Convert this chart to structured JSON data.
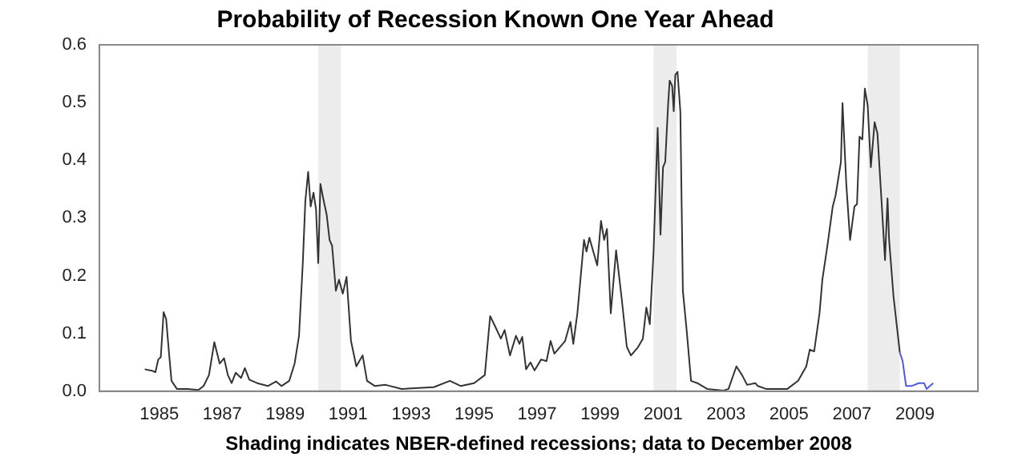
{
  "chart_data": {
    "type": "line",
    "title": "Probability of Recession Known One Year Ahead",
    "xlabel": "Shading indicates NBER-defined recessions; data to December 2008",
    "xlim": [
      1983.1,
      2011.0
    ],
    "xticks": [
      1985,
      1987,
      1989,
      1991,
      1993,
      1995,
      1997,
      1999,
      2001,
      2003,
      2005,
      2007,
      2009
    ],
    "ylim": [
      0,
      0.6
    ],
    "yticks": [
      {
        "value": 0,
        "label": "0.0"
      },
      0.1,
      0.2,
      0.3,
      0.4,
      0.5,
      0.6
    ],
    "grid": false,
    "bands": [
      {
        "axis": "x",
        "from": 1990.05,
        "to": 1990.77,
        "color": "#ececec"
      },
      {
        "axis": "x",
        "from": 2000.7,
        "to": 2001.43,
        "color": "#ececec"
      },
      {
        "axis": "x",
        "from": 2007.5,
        "to": 2008.52,
        "color": "#ececec"
      }
    ],
    "series": [
      {
        "color": "#333333",
        "x": [
          1984.54,
          1984.8,
          1984.88,
          1984.97,
          1985.05,
          1985.14,
          1985.22,
          1985.31,
          1985.39,
          1985.56,
          1985.9,
          1986.24,
          1986.41,
          1986.58,
          1986.75,
          1986.92,
          1987.06,
          1987.18,
          1987.3,
          1987.43,
          1987.6,
          1987.72,
          1987.86,
          1988.11,
          1988.45,
          1988.71,
          1988.88,
          1989.13,
          1989.3,
          1989.44,
          1989.56,
          1989.64,
          1989.73,
          1989.81,
          1989.9,
          1989.98,
          1990.05,
          1990.12,
          1990.19,
          1990.32,
          1990.41,
          1990.49,
          1990.61,
          1990.71,
          1990.83,
          1990.95,
          1991.09,
          1991.26,
          1991.46,
          1991.6,
          1991.85,
          1992.19,
          1992.7,
          1993.72,
          1994.23,
          1994.58,
          1995.0,
          1995.34,
          1995.51,
          1995.68,
          1995.85,
          1995.97,
          1996.14,
          1996.33,
          1996.44,
          1996.53,
          1996.65,
          1996.79,
          1996.92,
          1997.13,
          1997.3,
          1997.43,
          1997.55,
          1997.89,
          1998.06,
          1998.15,
          1998.28,
          1998.49,
          1998.57,
          1998.66,
          1998.91,
          1999.03,
          1999.13,
          1999.22,
          1999.34,
          1999.51,
          1999.68,
          1999.85,
          1999.98,
          2000.19,
          2000.36,
          2000.47,
          2000.58,
          2000.7,
          2000.83,
          2000.92,
          2001.0,
          2001.07,
          2001.16,
          2001.21,
          2001.29,
          2001.34,
          2001.39,
          2001.46,
          2001.55,
          2001.63,
          2001.75,
          2001.89,
          2002.09,
          2002.4,
          2002.91,
          2003.08,
          2003.33,
          2003.51,
          2003.67,
          2003.93,
          2004.01,
          2004.27,
          2004.95,
          2005.29,
          2005.55,
          2005.66,
          2005.8,
          2005.97,
          2006.06,
          2006.22,
          2006.39,
          2006.48,
          2006.65,
          2006.7,
          2006.82,
          2006.94,
          2007.08,
          2007.16,
          2007.24,
          2007.33,
          2007.41,
          2007.5,
          2007.6,
          2007.72,
          2007.81,
          2007.94,
          2008.05,
          2008.13,
          2008.18,
          2008.32,
          2008.52
        ],
        "values": [
          0.038,
          0.035,
          0.033,
          0.055,
          0.059,
          0.137,
          0.125,
          0.067,
          0.018,
          0.004,
          0.004,
          0.002,
          0.009,
          0.028,
          0.085,
          0.048,
          0.057,
          0.028,
          0.014,
          0.032,
          0.023,
          0.04,
          0.02,
          0.014,
          0.009,
          0.017,
          0.009,
          0.018,
          0.048,
          0.096,
          0.222,
          0.329,
          0.38,
          0.32,
          0.344,
          0.315,
          0.222,
          0.359,
          0.339,
          0.305,
          0.262,
          0.252,
          0.174,
          0.193,
          0.169,
          0.198,
          0.087,
          0.043,
          0.062,
          0.018,
          0.009,
          0.011,
          0.004,
          0.007,
          0.018,
          0.009,
          0.014,
          0.028,
          0.13,
          0.111,
          0.091,
          0.106,
          0.062,
          0.096,
          0.082,
          0.094,
          0.038,
          0.05,
          0.036,
          0.055,
          0.052,
          0.087,
          0.065,
          0.087,
          0.12,
          0.082,
          0.135,
          0.262,
          0.242,
          0.266,
          0.218,
          0.295,
          0.262,
          0.281,
          0.135,
          0.244,
          0.164,
          0.077,
          0.062,
          0.075,
          0.091,
          0.145,
          0.116,
          0.242,
          0.456,
          0.271,
          0.388,
          0.397,
          0.495,
          0.538,
          0.529,
          0.485,
          0.548,
          0.553,
          0.485,
          0.174,
          0.106,
          0.018,
          0.014,
          0.004,
          0.001,
          0.004,
          0.043,
          0.028,
          0.011,
          0.014,
          0.009,
          0.004,
          0.004,
          0.018,
          0.043,
          0.072,
          0.069,
          0.135,
          0.193,
          0.252,
          0.32,
          0.339,
          0.397,
          0.499,
          0.359,
          0.262,
          0.32,
          0.324,
          0.441,
          0.436,
          0.524,
          0.495,
          0.388,
          0.466,
          0.446,
          0.329,
          0.227,
          0.334,
          0.262,
          0.164,
          0.067
        ]
      },
      {
        "color": "#4b5bdc",
        "x": [
          2008.52,
          2008.61,
          2008.72,
          2008.89,
          2009.12,
          2009.29,
          2009.37,
          2009.58
        ],
        "values": [
          0.067,
          0.052,
          0.009,
          0.009,
          0.014,
          0.014,
          0.004,
          0.014
        ]
      }
    ]
  }
}
